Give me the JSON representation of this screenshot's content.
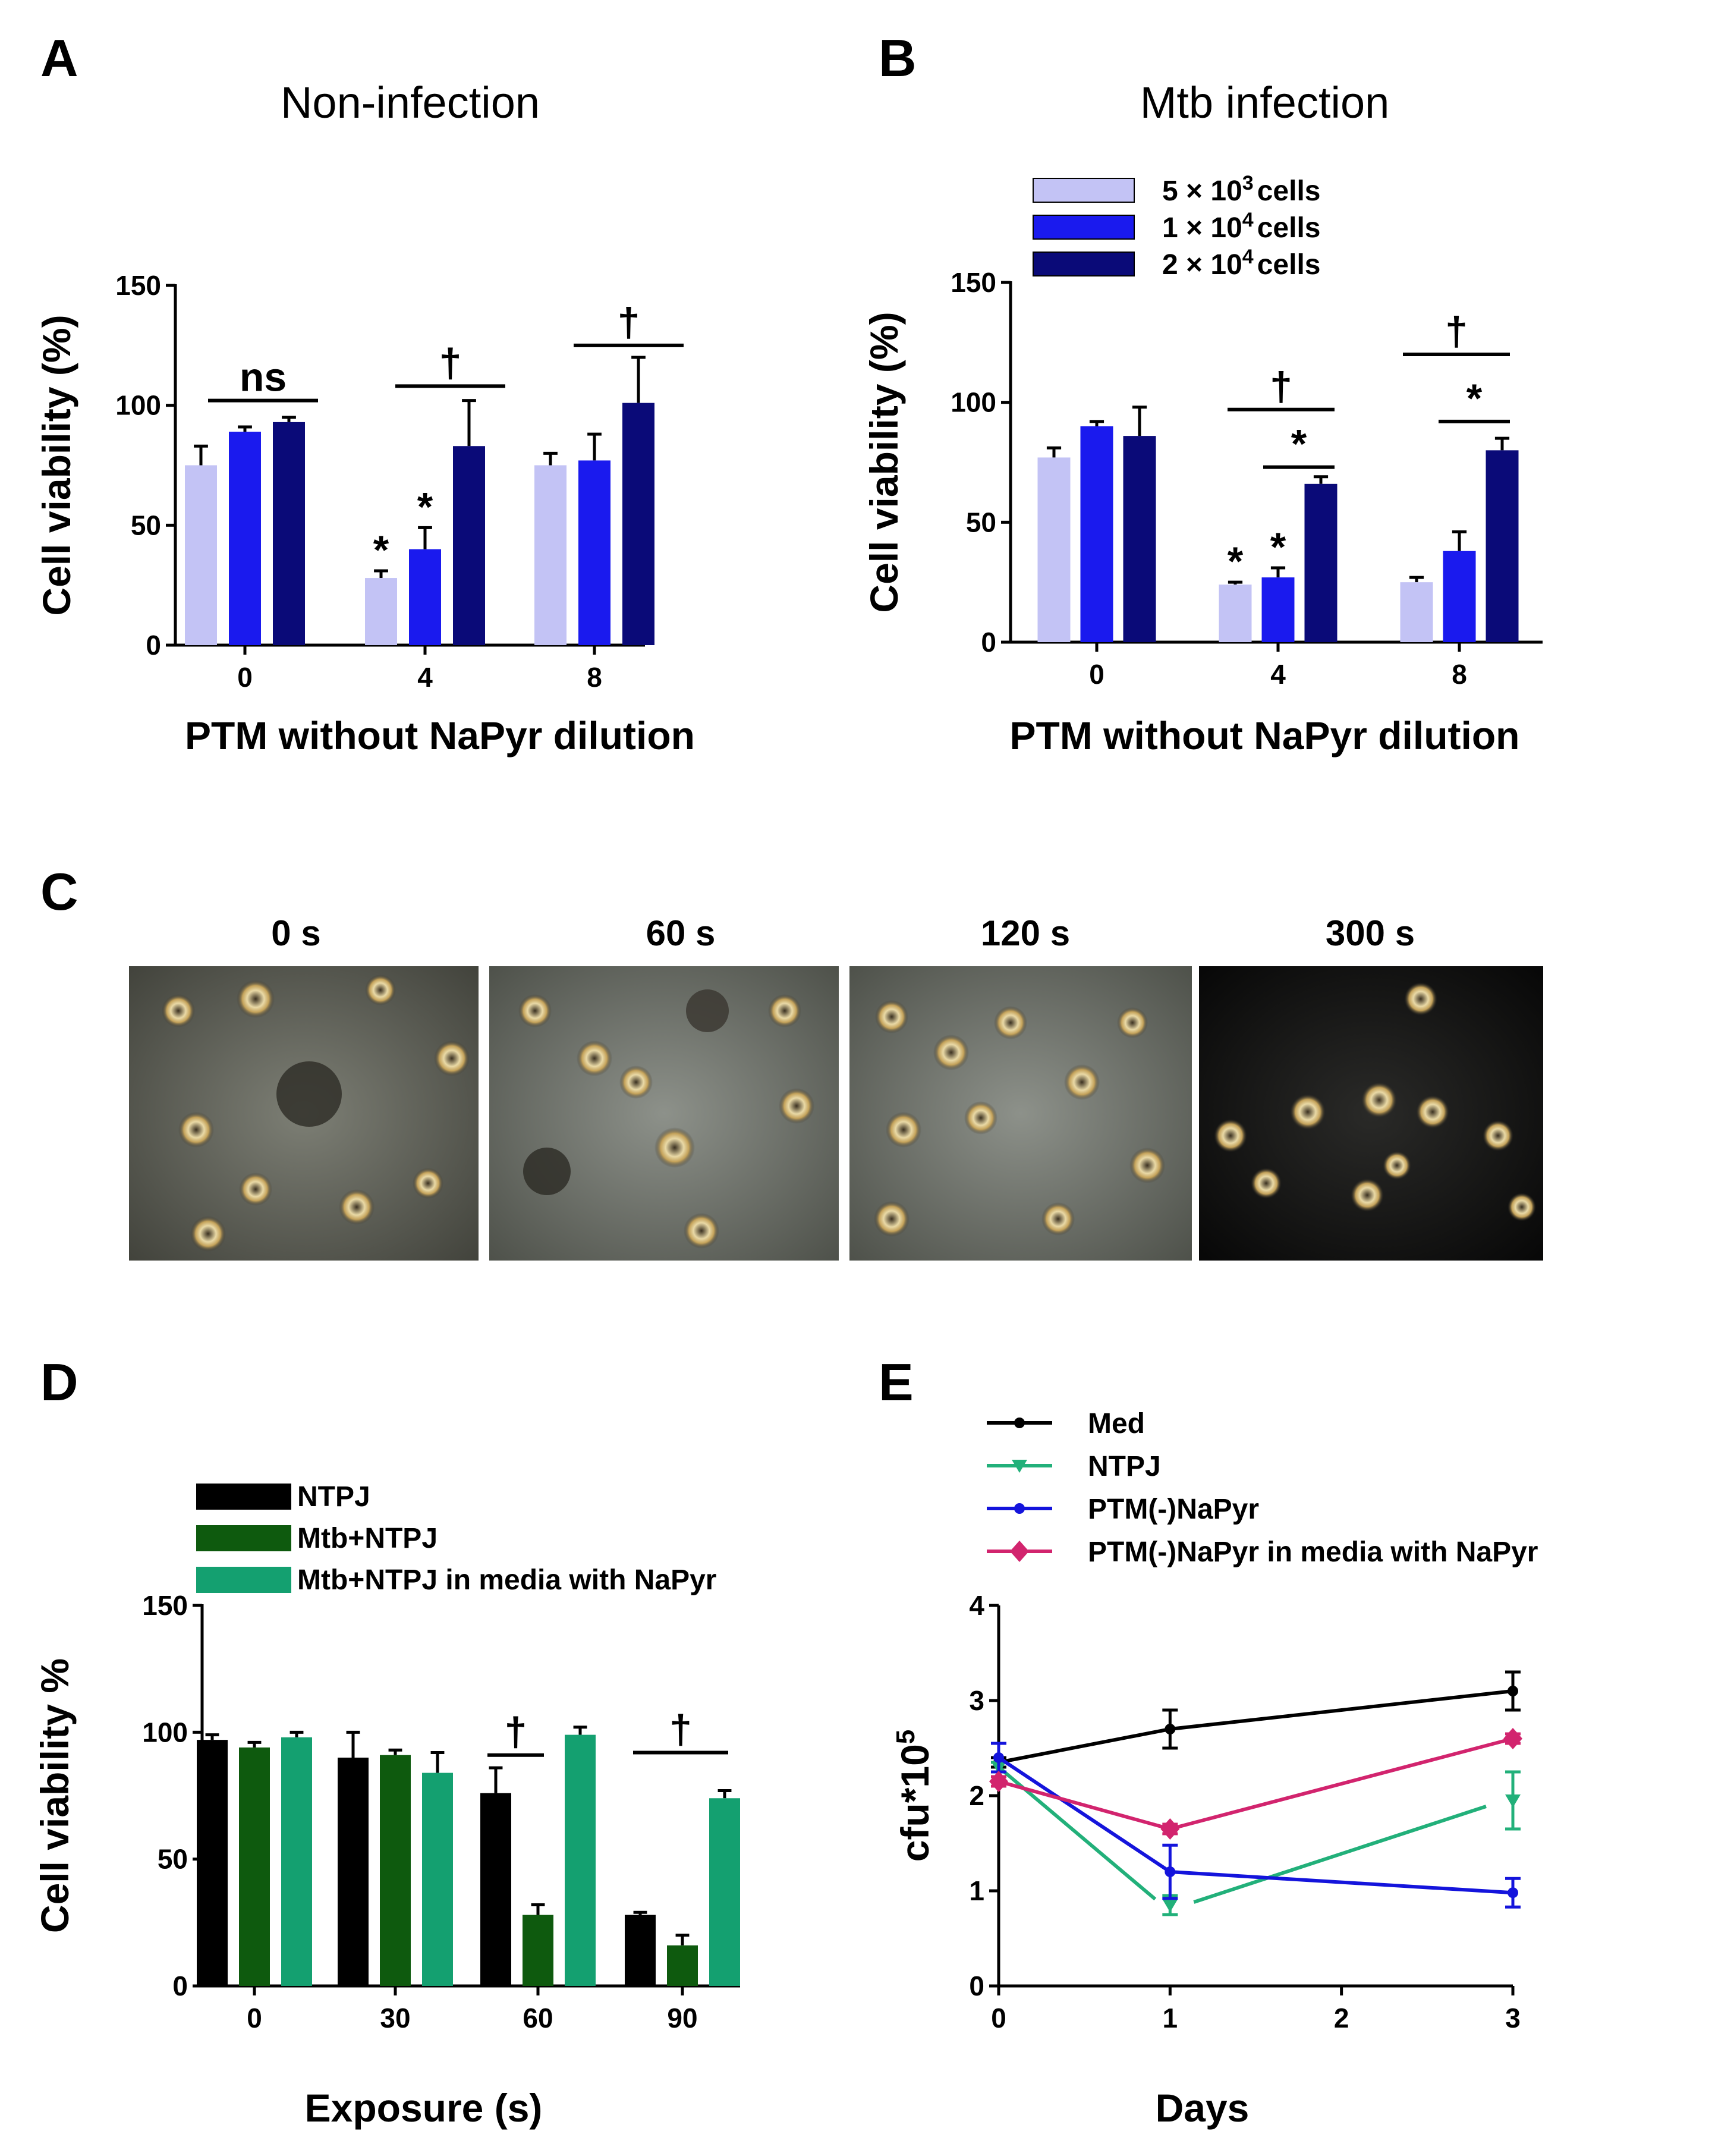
{
  "panels": {
    "A": "A",
    "B": "B",
    "C": "C",
    "D": "D",
    "E": "E"
  },
  "colors": {
    "light": "#C3C3F5",
    "mid": "#1A1AEE",
    "dark": "#0A0A78",
    "black": "#000000",
    "green_dark": "#0E5A0E",
    "green": "#14A070",
    "teal": "#22B07A",
    "blue": "#1414DC",
    "pink": "#D2246E"
  },
  "chart_data": [
    {
      "id": "A",
      "type": "bar",
      "title": "Non-infection",
      "xlabel": "PTM without NaPyr dilution",
      "ylabel": "Cell viability (%)",
      "categories": [
        "0",
        "4",
        "8"
      ],
      "ylim": [
        0,
        150
      ],
      "yticks": [
        "0",
        "50",
        "100",
        "150"
      ],
      "series": [
        {
          "name": "5 × 10³ cells",
          "values": [
            75,
            28,
            75
          ],
          "errors": [
            8,
            3,
            5
          ]
        },
        {
          "name": "1 × 10⁴ cells",
          "values": [
            89,
            40,
            77
          ],
          "errors": [
            2,
            9,
            11
          ]
        },
        {
          "name": "2 × 10⁴ cells",
          "values": [
            93,
            83,
            101
          ],
          "errors": [
            2,
            19,
            19
          ]
        }
      ],
      "annotations": [
        {
          "type": "bracket",
          "from_cat": 0,
          "text": "ns"
        },
        {
          "type": "bracket",
          "from_cat": 1,
          "text": "†"
        },
        {
          "type": "bracket",
          "from_cat": 2,
          "text": "†"
        },
        {
          "type": "star",
          "cat": 1,
          "series": 0,
          "text": "*"
        },
        {
          "type": "star",
          "cat": 1,
          "series": 1,
          "text": "*"
        }
      ]
    },
    {
      "id": "B",
      "type": "bar",
      "title": "Mtb infection",
      "xlabel": "PTM without NaPyr dilution",
      "ylabel": "Cell viability (%)",
      "categories": [
        "0",
        "4",
        "8"
      ],
      "ylim": [
        0,
        150
      ],
      "yticks": [
        "0",
        "50",
        "100",
        "150"
      ],
      "legend": [
        {
          "prefix": "5 × 10",
          "sup": "3",
          "suffix": "cells"
        },
        {
          "prefix": "1 × 10",
          "sup": "4",
          "suffix": "cells"
        },
        {
          "prefix": "2 × 10",
          "sup": "4",
          "suffix": "cells"
        }
      ],
      "series": [
        {
          "name": "5 × 10³ cells",
          "values": [
            77,
            24,
            25
          ],
          "errors": [
            4,
            1,
            2
          ]
        },
        {
          "name": "1 × 10⁴ cells",
          "values": [
            90,
            27,
            38
          ],
          "errors": [
            2,
            4,
            8
          ]
        },
        {
          "name": "2 × 10⁴ cells",
          "values": [
            86,
            66,
            80
          ],
          "errors": [
            12,
            3,
            5
          ]
        }
      ],
      "annotations": [
        {
          "type": "bracket",
          "cat": 1,
          "text": "†"
        },
        {
          "type": "bracket",
          "cat": 1,
          "text": "*"
        },
        {
          "type": "bracket",
          "cat": 2,
          "text": "†"
        },
        {
          "type": "bracket",
          "cat": 2,
          "text": "*"
        },
        {
          "type": "star",
          "cat": 1,
          "series": 0,
          "text": "*"
        },
        {
          "type": "star",
          "cat": 1,
          "series": 1,
          "text": "*"
        }
      ]
    },
    {
      "id": "D",
      "type": "bar",
      "xlabel": "Exposure (s)",
      "ylabel": "Cell viability %",
      "categories": [
        "0",
        "30",
        "60",
        "90"
      ],
      "ylim": [
        0,
        150
      ],
      "yticks": [
        "0",
        "50",
        "100",
        "150"
      ],
      "series": [
        {
          "name": "NTPJ",
          "values": [
            97,
            90,
            76,
            28
          ],
          "errors": [
            2,
            10,
            10,
            1
          ]
        },
        {
          "name": "Mtb+NTPJ",
          "values": [
            94,
            91,
            28,
            16
          ],
          "errors": [
            2,
            2,
            4,
            4
          ]
        },
        {
          "name": "Mtb+NTPJ in media with NaPyr",
          "values": [
            98,
            84,
            99,
            74
          ],
          "errors": [
            2,
            8,
            3,
            3
          ]
        }
      ],
      "annotations": [
        {
          "type": "bracket",
          "cat": 2,
          "text": "†"
        },
        {
          "type": "bracket",
          "cat": 3,
          "text": "†"
        }
      ]
    },
    {
      "id": "E",
      "type": "line",
      "xlabel": "Days",
      "ylabel": "cfu*10",
      "ylabel_sup": "5",
      "x": [
        0,
        1,
        3
      ],
      "xticks": [
        "0",
        "1",
        "2",
        "3"
      ],
      "yticks": [
        "0",
        "1",
        "2",
        "3",
        "4"
      ],
      "xlim": [
        0,
        3
      ],
      "ylim": [
        0,
        4
      ],
      "series": [
        {
          "name": "Med",
          "values": [
            2.35,
            2.7,
            3.1
          ],
          "errors": [
            0.05,
            0.2,
            0.2
          ]
        },
        {
          "name": "NTPJ",
          "values": [
            2.3,
            0.85,
            1.95
          ],
          "errors": [
            0.05,
            0.1,
            0.3
          ]
        },
        {
          "name": "PTM(-)NaPyr",
          "values": [
            2.4,
            1.2,
            0.98
          ],
          "errors": [
            0.15,
            0.28,
            0.15
          ]
        },
        {
          "name": "PTM(-)NaPyr in media with NaPyr",
          "values": [
            2.15,
            1.65,
            2.6
          ],
          "errors": [
            0.05,
            0.05,
            0.05
          ]
        }
      ]
    }
  ],
  "panel_c": {
    "labels": [
      "0 s",
      "60 s",
      "120 s",
      "300 s"
    ]
  }
}
